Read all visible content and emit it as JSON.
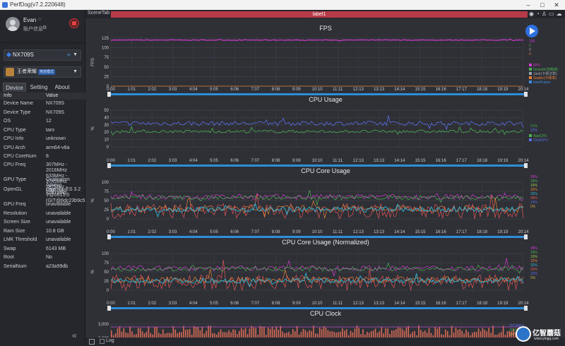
{
  "window": {
    "title": "PerfDog(v7.2.220648)"
  },
  "user": {
    "name": "Evan",
    "info_label": "账户信息"
  },
  "device": {
    "name": "NX709S"
  },
  "app": {
    "name": "王者荣耀",
    "mode": "竞技模式"
  },
  "tabs": [
    "Device",
    "Setting",
    "About"
  ],
  "table": {
    "headers": [
      "Info",
      "Value"
    ],
    "rows": [
      {
        "k": "Device Name",
        "v": [
          "NX709S"
        ]
      },
      {
        "k": "Device Type",
        "v": [
          "NX709S"
        ]
      },
      {
        "k": "OS",
        "v": [
          "12"
        ]
      },
      {
        "k": "CPU Type",
        "v": [
          "taro"
        ]
      },
      {
        "k": "CPU Info",
        "v": [
          "unknown"
        ]
      },
      {
        "k": "CPU Arch",
        "v": [
          "arm64-v8a"
        ]
      },
      {
        "k": "CPU CoreNum",
        "v": [
          "8"
        ]
      },
      {
        "k": "CPU Freq",
        "v": [
          "307MHz - 2016MHz",
          "633MHz - 2745MHz",
          "787MHz - 3187MHz"
        ]
      },
      {
        "k": "GPU Type",
        "v": [
          "Qualcomm Adreno",
          "(TM) 730"
        ]
      },
      {
        "k": "OpenGL",
        "v": [
          "OpenGL ES 3.2",
          "V@0615.0",
          "(GIT@6dc23b9c5"
        ]
      },
      {
        "k": "GPU Freq",
        "v": [
          "unavailable"
        ]
      },
      {
        "k": "Resolution",
        "v": [
          "unavailable"
        ]
      },
      {
        "k": "Screen Size",
        "v": [
          "unavailable"
        ]
      },
      {
        "k": "Ram Size",
        "v": [
          "10.8 GB"
        ]
      },
      {
        "k": "LMK Threshold",
        "v": [
          "unavailable"
        ]
      },
      {
        "k": "Swap",
        "v": [
          "6143 MB"
        ]
      },
      {
        "k": "Root",
        "v": [
          "No"
        ]
      },
      {
        "k": "SerialNum",
        "v": [
          "a23a99db"
        ]
      }
    ]
  },
  "scene": {
    "tab_label": "SceneTab",
    "label": "label1"
  },
  "time_ticks": [
    "0:00",
    "1:01",
    "2:02",
    "3:03",
    "4:04",
    "5:05",
    "6:06",
    "7:07",
    "8:08",
    "9:09",
    "10:10",
    "11:11",
    "12:13",
    "13:13",
    "14:14",
    "15:15",
    "16:16",
    "17:17",
    "18:18",
    "19:19",
    "20:14"
  ],
  "log_label": "Log",
  "watermark": {
    "text": "亿智蘑菇",
    "url": "www.ymgq.com"
  },
  "chart_data": [
    {
      "type": "line",
      "title": "FPS",
      "ylabel": "FPS",
      "ylim": [
        0,
        125
      ],
      "yticks": [
        "125",
        "100",
        "75",
        "50",
        "25",
        "0"
      ],
      "series": [
        {
          "name": "FPS",
          "color": "#d23bd0",
          "values_note_level": 120
        },
        {
          "name": "Smooth(流畅度)",
          "color": "#4caf50"
        },
        {
          "name": "Jank(卡顿次数)",
          "color": "#9aa3ad"
        },
        {
          "name": "Stutter(卡顿率)",
          "color": "#e8803a"
        },
        {
          "name": "InterFrame",
          "color": "#3d8fe0"
        }
      ],
      "legend_values": [
        "120",
        "0",
        "0",
        "0"
      ],
      "x": [
        "0:00",
        "20:14"
      ]
    },
    {
      "type": "line",
      "title": "CPU Usage",
      "ylabel": "%",
      "ylim": [
        0,
        50
      ],
      "yticks": [
        "50",
        "40",
        "30",
        "20",
        "10",
        "0"
      ],
      "series": [
        {
          "name": "AppCPU",
          "color": "#4caf50",
          "level": 21
        },
        {
          "name": "TotalCPU",
          "color": "#5b6ee8",
          "level": 32
        }
      ],
      "legend_values": [
        "21%",
        "32%"
      ]
    },
    {
      "type": "line",
      "title": "CPU Core Usage",
      "ylabel": "%",
      "ylim": [
        0,
        100
      ],
      "yticks": [
        "100",
        "75",
        "50",
        "25",
        "0"
      ],
      "legend_values": [
        "28%",
        "18%",
        "16%",
        "32%",
        "32%",
        "58%",
        "14%",
        "0%"
      ]
    },
    {
      "type": "line",
      "title": "CPU Core Usage (Normalized)",
      "ylabel": "%",
      "ylim": [
        0,
        100
      ],
      "yticks": [
        "100",
        "75",
        "50",
        "25",
        "0"
      ],
      "legend_values": [
        "28%",
        "18%",
        "16%",
        "32%",
        "32%",
        "60%",
        "22%",
        "0%"
      ]
    },
    {
      "type": "line",
      "title": "CPU Clock",
      "ylim": [
        2000,
        3000
      ],
      "yticks": [
        "3,000",
        "2,000"
      ],
      "legend_values": [
        "2016MHz",
        "2016MHz",
        "1670MHz"
      ]
    }
  ]
}
